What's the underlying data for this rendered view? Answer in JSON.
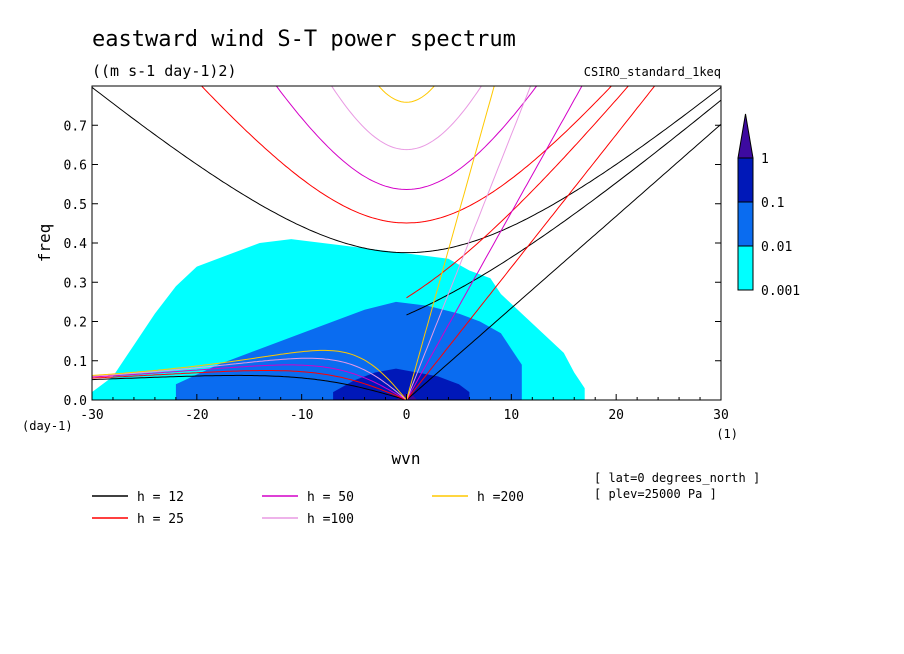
{
  "chart_data": {
    "type": "heatmap",
    "title": "eastward wind S-T power spectrum",
    "subtitle": "((m s-1 day-1)2)",
    "source_label": "CSIRO_standard_1keq",
    "xlabel": "wvn",
    "ylabel": "freq",
    "x_unit": "(1)",
    "y_unit": "(day-1)",
    "xlim": [
      -30,
      30
    ],
    "ylim": [
      0,
      0.8
    ],
    "x_ticks": [
      "-30",
      "-20",
      "-10",
      "0",
      "10",
      "20",
      "30"
    ],
    "y_ticks": [
      "0.0",
      "0.1",
      "0.2",
      "0.3",
      "0.4",
      "0.5",
      "0.6",
      "0.7"
    ],
    "colorbar": {
      "levels": [
        "0.001",
        "0.01",
        "0.1",
        "1"
      ],
      "colors": [
        "#00ffff",
        "#0a6cf0",
        "#0018b8",
        "#3d0aa0"
      ]
    },
    "power_regions": [
      {
        "level": 0,
        "note": "",
        "points": [
          [
            -30,
            0.02
          ],
          [
            -28,
            0.06
          ],
          [
            -26,
            0.14
          ],
          [
            -24,
            0.22
          ],
          [
            -22,
            0.29
          ],
          [
            -20,
            0.34
          ],
          [
            -17,
            0.37
          ],
          [
            -14,
            0.4
          ],
          [
            -11,
            0.41
          ],
          [
            -8,
            0.4
          ],
          [
            -5,
            0.39
          ],
          [
            -2,
            0.38
          ],
          [
            1,
            0.37
          ],
          [
            4,
            0.36
          ],
          [
            6,
            0.33
          ],
          [
            8,
            0.31
          ],
          [
            9,
            0.27
          ],
          [
            11,
            0.22
          ],
          [
            13,
            0.17
          ],
          [
            15,
            0.12
          ],
          [
            16,
            0.07
          ],
          [
            17,
            0.03
          ],
          [
            17,
            0.0
          ],
          [
            -30,
            0.0
          ]
        ]
      },
      {
        "level": 1,
        "points": [
          [
            -22,
            0.04
          ],
          [
            -18,
            0.09
          ],
          [
            -14,
            0.13
          ],
          [
            -10,
            0.17
          ],
          [
            -7,
            0.2
          ],
          [
            -4,
            0.23
          ],
          [
            -1,
            0.25
          ],
          [
            2,
            0.24
          ],
          [
            5,
            0.22
          ],
          [
            7,
            0.2
          ],
          [
            9,
            0.17
          ],
          [
            10,
            0.13
          ],
          [
            11,
            0.09
          ],
          [
            11,
            0.04
          ],
          [
            11,
            0.0
          ],
          [
            -22,
            0.0
          ]
        ]
      },
      {
        "level": 2,
        "points": [
          [
            -7,
            0.02
          ],
          [
            -5,
            0.05
          ],
          [
            -3,
            0.07
          ],
          [
            -1,
            0.08
          ],
          [
            1,
            0.07
          ],
          [
            3,
            0.06
          ],
          [
            5,
            0.04
          ],
          [
            6,
            0.02
          ],
          [
            6,
            0.0
          ],
          [
            -7,
            0.0
          ]
        ]
      },
      {
        "level": 3,
        "points": [
          [
            -1,
            0.0
          ],
          [
            -0.3,
            0.015
          ],
          [
            0.5,
            0.015
          ],
          [
            1,
            0.0
          ]
        ]
      }
    ],
    "dispersion_curves": [
      {
        "name": "h = 12",
        "color": "#000000",
        "equivalent_depth_m": 12
      },
      {
        "name": "h = 25",
        "color": "#ff0000",
        "equivalent_depth_m": 25
      },
      {
        "name": "h = 50",
        "color": "#d400c8",
        "equivalent_depth_m": 50
      },
      {
        "name": "h =100",
        "color": "#e99ae3",
        "equivalent_depth_m": 100
      },
      {
        "name": "h =200",
        "color": "#ffc800",
        "equivalent_depth_m": 200
      }
    ],
    "annotations": [
      "[ lat=0 degrees_north ]",
      "[ plev=25000 Pa ]"
    ],
    "grid": false,
    "legend_position": "bottom"
  }
}
